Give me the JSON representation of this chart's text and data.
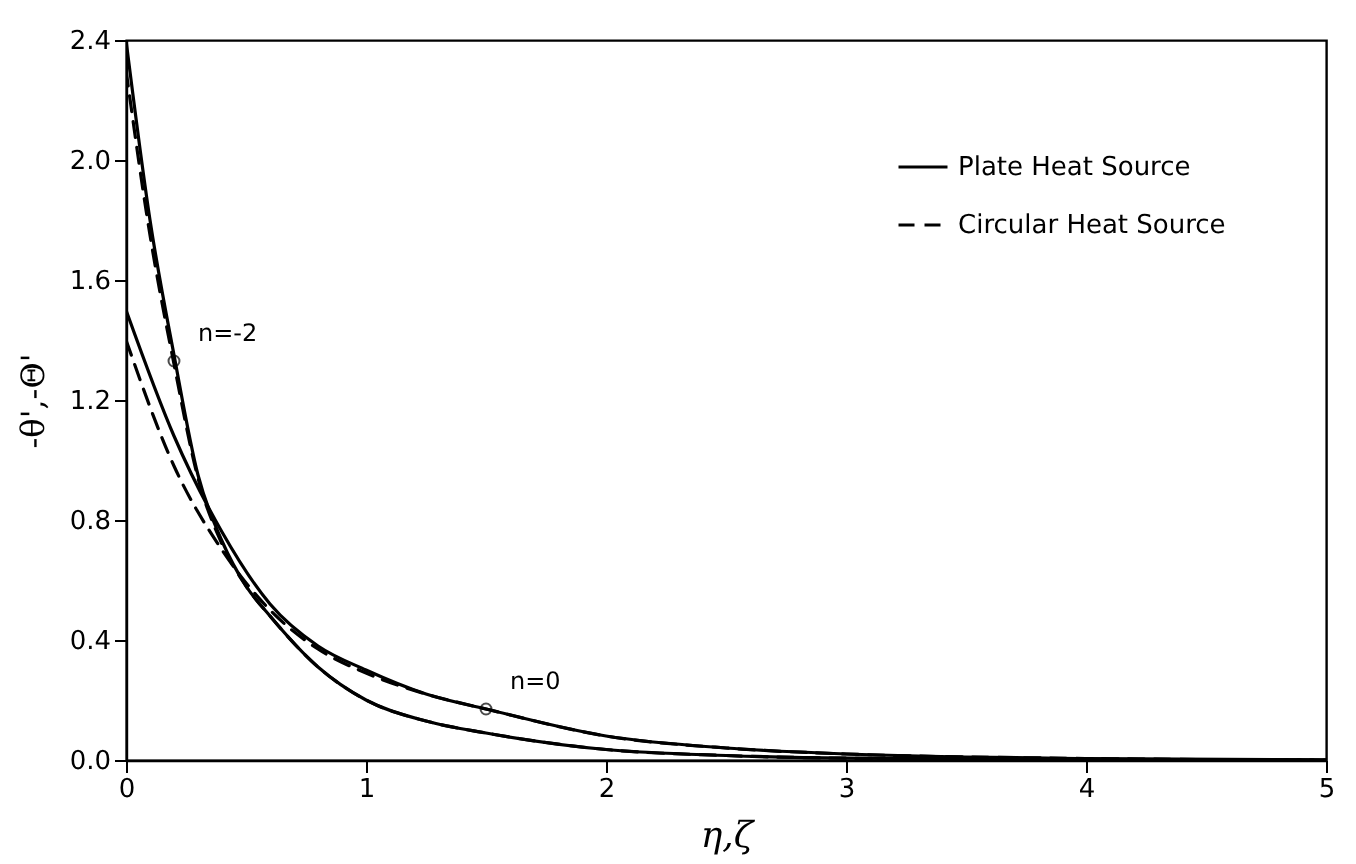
{
  "chart_data": {
    "type": "line",
    "xlabel": "η,ζ",
    "ylabel": "-θ',-Θ'",
    "xlim": [
      0,
      5
    ],
    "xticks": [
      0,
      1,
      2,
      3,
      4,
      5
    ],
    "ylim": [
      0,
      2.4
    ],
    "yticks": [
      {
        "value": 0,
        "label": "0.0"
      },
      {
        "value": 0.4,
        "label": "0.4"
      },
      {
        "value": 0.8,
        "label": "0.8"
      },
      {
        "value": 1.2,
        "label": "1.2"
      },
      {
        "value": 1.6,
        "label": "1.6"
      },
      {
        "value": 2.0,
        "label": "2.0"
      },
      {
        "value": 2.4,
        "label": "2.4"
      }
    ],
    "grid": false,
    "legend": "top right",
    "marker": "none",
    "annotations": [
      {
        "text": "n=-2",
        "x": 0.2,
        "y": 1.33
      },
      {
        "text": "n=0",
        "x": 1.5,
        "y": 0.17
      }
    ],
    "series": [
      {
        "name": "Plate Heat Source",
        "color": "#000000",
        "line_style": "solid",
        "x": [
          0,
          0.1,
          0.2,
          0.3,
          0.4,
          0.5,
          0.6,
          0.8,
          1,
          1.25,
          1.5,
          2,
          2.5,
          3,
          4,
          5
        ],
        "values": [
          2.4,
          1.8,
          1.35,
          0.95,
          0.73,
          0.58,
          0.48,
          0.31,
          0.2,
          0.13,
          0.09,
          0.035,
          0.015,
          0.006,
          0.002,
          0
        ]
      },
      {
        "name": "Circular Heat Source",
        "color": "#000000",
        "line_style": "dashed",
        "x": [
          0,
          0.1,
          0.2,
          0.3,
          0.4,
          0.5,
          0.6,
          0.8,
          1,
          1.25,
          1.5,
          2,
          2.5,
          3,
          4,
          5
        ],
        "values": [
          2.3,
          1.75,
          1.32,
          0.94,
          0.72,
          0.58,
          0.48,
          0.31,
          0.2,
          0.13,
          0.09,
          0.035,
          0.015,
          0.006,
          0.002,
          0
        ]
      },
      {
        "color": "#000000",
        "line_style": "solid",
        "x": [
          0,
          0.2,
          0.4,
          0.6,
          0.8,
          1,
          1.25,
          1.5,
          2,
          2.5,
          3,
          4,
          5
        ],
        "values": [
          1.5,
          1.08,
          0.76,
          0.52,
          0.38,
          0.3,
          0.22,
          0.17,
          0.08,
          0.04,
          0.02,
          0.005,
          0
        ]
      },
      {
        "color": "#000000",
        "line_style": "dashed",
        "x": [
          0,
          0.2,
          0.4,
          0.6,
          0.8,
          1,
          1.25,
          1.5,
          2,
          2.5,
          3,
          4,
          5
        ],
        "values": [
          1.4,
          0.98,
          0.7,
          0.5,
          0.37,
          0.29,
          0.22,
          0.17,
          0.08,
          0.04,
          0.02,
          0.005,
          0
        ]
      }
    ]
  }
}
